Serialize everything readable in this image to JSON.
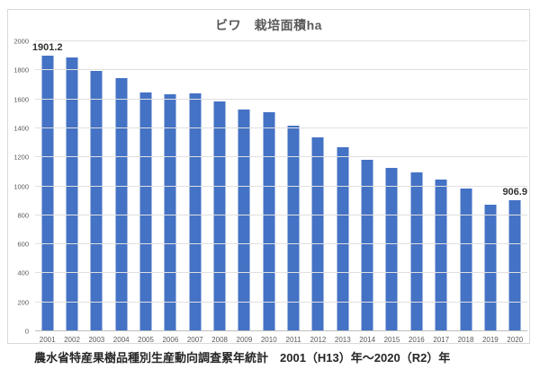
{
  "title": "ビワ　栽培面積ha",
  "source_caption": "農水省特産果樹品種別生産動向調査累年統計　2001（H13）年～2020（R2）年",
  "colors": {
    "bar": "#4472C4",
    "gridline": "#e0e0e0",
    "axis_line": "#bfbfbf",
    "axis_text": "#595959",
    "title_text": "#595959",
    "data_label_text": "#333333",
    "frame_border": "#d9d9d9",
    "background": "#ffffff"
  },
  "chart_data": {
    "type": "bar",
    "title": "ビワ　栽培面積ha",
    "categories": [
      "2001",
      "2002",
      "2003",
      "2004",
      "2005",
      "2006",
      "2007",
      "2008",
      "2009",
      "2010",
      "2011",
      "2012",
      "2013",
      "2014",
      "2015",
      "2016",
      "2017",
      "2018",
      "2019",
      "2020"
    ],
    "values": [
      1901.2,
      1886,
      1797,
      1748,
      1649,
      1634,
      1640,
      1587,
      1531,
      1508,
      1417,
      1340,
      1270,
      1185,
      1127,
      1095,
      1048,
      985,
      875,
      906.9
    ],
    "data_labels": [
      {
        "index": 0,
        "text": "1901.2"
      },
      {
        "index": 19,
        "text": "906.9"
      }
    ],
    "xlabel": "",
    "ylabel": "",
    "ylim": [
      0,
      2000
    ],
    "ytick_step": 200,
    "ytick_labels": [
      "0",
      "200",
      "400",
      "600",
      "800",
      "1000",
      "1200",
      "1400",
      "1600",
      "1800",
      "2000"
    ],
    "grid": true,
    "legend": false
  }
}
